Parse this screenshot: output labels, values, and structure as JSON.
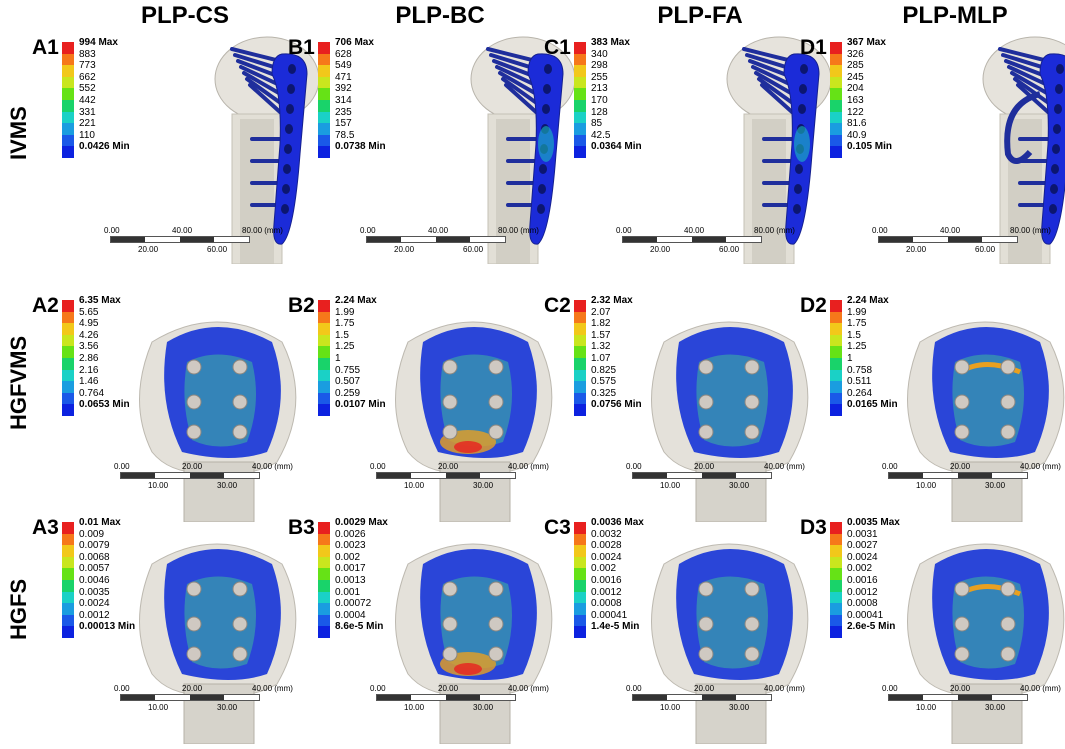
{
  "columns": [
    "PLP-CS",
    "PLP-BC",
    "PLP-FA",
    "PLP-MLP"
  ],
  "rows": [
    "IVMS",
    "HGFVMS",
    "HGFS"
  ],
  "legend_colors": [
    "#e8201f",
    "#f6781a",
    "#f2c81a",
    "#c9e61e",
    "#66e216",
    "#19d36a",
    "#1ad1c6",
    "#1a9de0",
    "#1a59e8",
    "#0c22e0"
  ],
  "panels": {
    "A1": {
      "id": "A1",
      "values": [
        "994 Max",
        "883",
        "773",
        "662",
        "552",
        "442",
        "331",
        "221",
        "110",
        "0.0426 Min"
      ]
    },
    "B1": {
      "id": "B1",
      "values": [
        "706 Max",
        "628",
        "549",
        "471",
        "392",
        "314",
        "235",
        "157",
        "78.5",
        "0.0738 Min"
      ]
    },
    "C1": {
      "id": "C1",
      "values": [
        "383 Max",
        "340",
        "298",
        "255",
        "213",
        "170",
        "128",
        "85",
        "42.5",
        "0.0364 Min"
      ]
    },
    "D1": {
      "id": "D1",
      "values": [
        "367 Max",
        "326",
        "285",
        "245",
        "204",
        "163",
        "122",
        "81.6",
        "40.9",
        "0.105 Min"
      ]
    },
    "A2": {
      "id": "A2",
      "values": [
        "6.35 Max",
        "5.65",
        "4.95",
        "4.26",
        "3.56",
        "2.86",
        "2.16",
        "1.46",
        "0.764",
        "0.0653 Min"
      ]
    },
    "B2": {
      "id": "B2",
      "values": [
        "2.24 Max",
        "1.99",
        "1.75",
        "1.5",
        "1.25",
        "1",
        "0.755",
        "0.507",
        "0.259",
        "0.0107 Min"
      ]
    },
    "C2": {
      "id": "C2",
      "values": [
        "2.32 Max",
        "2.07",
        "1.82",
        "1.57",
        "1.32",
        "1.07",
        "0.825",
        "0.575",
        "0.325",
        "0.0756 Min"
      ]
    },
    "D2": {
      "id": "D2",
      "values": [
        "2.24 Max",
        "1.99",
        "1.75",
        "1.5",
        "1.25",
        "1",
        "0.758",
        "0.511",
        "0.264",
        "0.0165 Min"
      ]
    },
    "A3": {
      "id": "A3",
      "values": [
        "0.01 Max",
        "0.009",
        "0.0079",
        "0.0068",
        "0.0057",
        "0.0046",
        "0.0035",
        "0.0024",
        "0.0012",
        "0.00013 Min"
      ]
    },
    "B3": {
      "id": "B3",
      "values": [
        "0.0029 Max",
        "0.0026",
        "0.0023",
        "0.002",
        "0.0017",
        "0.0013",
        "0.001",
        "0.00072",
        "0.0004",
        "8.6e-5 Min"
      ]
    },
    "C3": {
      "id": "C3",
      "values": [
        "0.0036 Max",
        "0.0032",
        "0.0028",
        "0.0024",
        "0.002",
        "0.0016",
        "0.0012",
        "0.0008",
        "0.00041",
        "1.4e-5 Min"
      ]
    },
    "D3": {
      "id": "D3",
      "values": [
        "0.0035 Max",
        "0.0031",
        "0.0027",
        "0.0024",
        "0.002",
        "0.0016",
        "0.0012",
        "0.0008",
        "0.00041",
        "2.6e-5 Min"
      ]
    }
  },
  "scale_row1": {
    "t0": "0.00",
    "t1": "20.00",
    "t2": "40.00",
    "t3": "60.00",
    "t4": "80.00 (mm)"
  },
  "scale_row23": {
    "t0": "0.00",
    "t1": "10.00",
    "t2": "20.00",
    "t3": "30.00",
    "t4": "40.00 (mm)"
  }
}
